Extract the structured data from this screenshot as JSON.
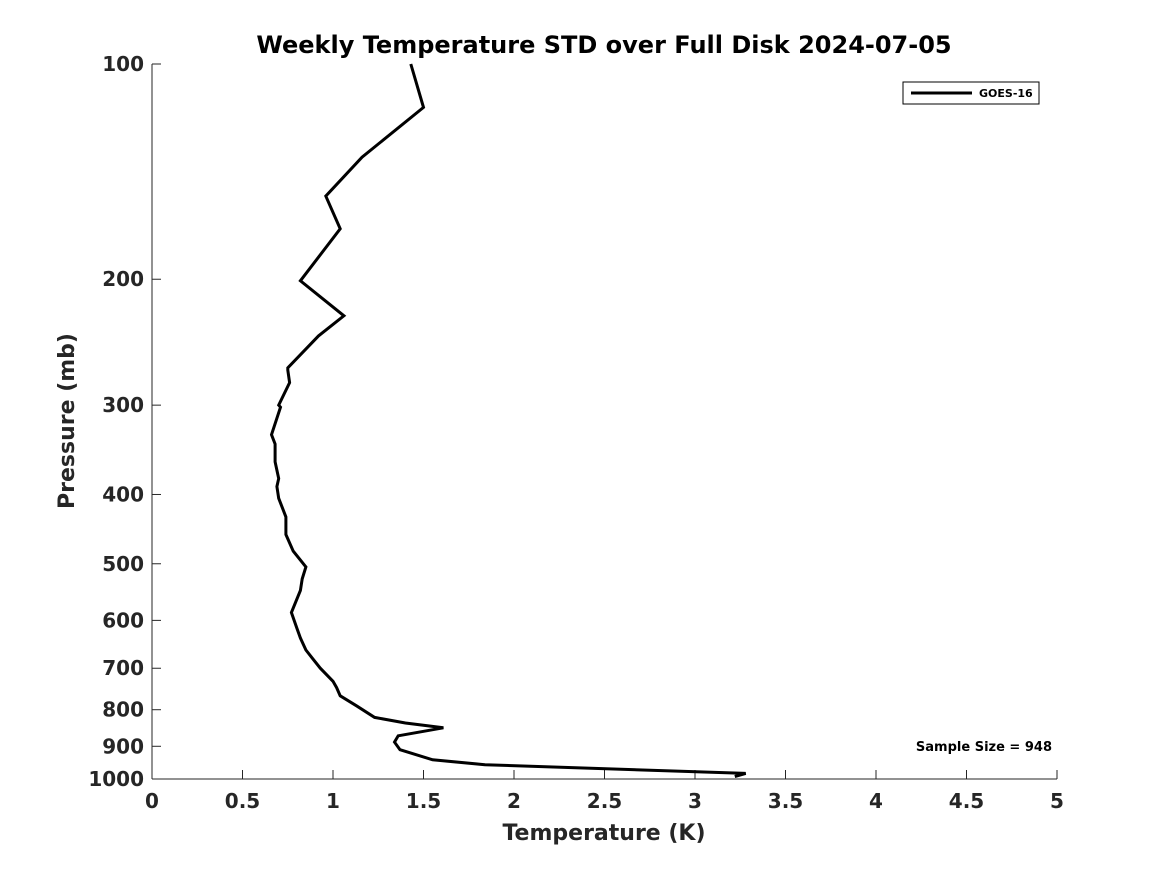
{
  "chart_data": {
    "type": "line",
    "title": "Weekly Temperature STD over Full Disk 2024-07-05",
    "xlabel": "Temperature (K)",
    "ylabel": "Pressure (mb)",
    "xlim": [
      0,
      5
    ],
    "ylim": [
      100,
      1000
    ],
    "y_scale": "log",
    "y_direction": "reversed",
    "grid": false,
    "legend_position": "top-right",
    "x_ticks": [
      "0",
      "0.5",
      "1",
      "1.5",
      "2",
      "2.5",
      "3",
      "3.5",
      "4",
      "4.5",
      "5"
    ],
    "y_ticks": [
      "100",
      "200",
      "300",
      "400",
      "500",
      "600",
      "700",
      "800",
      "900",
      "1000"
    ],
    "annotation": "Sample Size = 948",
    "series": [
      {
        "name": "GOES-16",
        "color": "#000000",
        "x": [
          1.43,
          1.5,
          1.16,
          0.96,
          1.04,
          0.82,
          1.06,
          0.92,
          0.75,
          0.75,
          0.76,
          0.7,
          0.71,
          0.66,
          0.68,
          0.68,
          0.7,
          0.69,
          0.7,
          0.74,
          0.74,
          0.78,
          0.85,
          0.83,
          0.82,
          0.77,
          0.8,
          0.82,
          0.85,
          0.89,
          0.93,
          1.0,
          1.02,
          1.04,
          1.13,
          1.23,
          1.4,
          1.61,
          1.36,
          1.34,
          1.37,
          1.55,
          1.84,
          3.28,
          3.22
        ],
        "y": [
          100,
          115,
          135,
          153,
          170,
          201,
          225,
          240,
          266,
          268,
          279,
          300,
          302,
          330,
          340,
          360,
          380,
          390,
          405,
          430,
          455,
          480,
          505,
          525,
          545,
          585,
          615,
          635,
          660,
          680,
          700,
          730,
          745,
          765,
          790,
          820,
          835,
          848,
          870,
          888,
          910,
          940,
          955,
          982,
          992
        ]
      }
    ]
  }
}
